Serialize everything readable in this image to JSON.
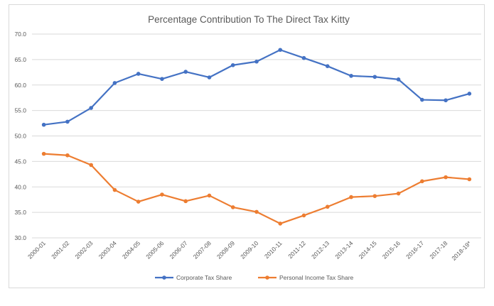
{
  "chart_data": {
    "type": "line",
    "title": "Percentage Contribution To The Direct Tax Kitty",
    "xlabel": "",
    "ylabel": "",
    "ylim": [
      30.0,
      70.0
    ],
    "yticks": [
      "30.0",
      "35.0",
      "40.0",
      "45.0",
      "50.0",
      "55.0",
      "60.0",
      "65.0",
      "70.0"
    ],
    "grid": "horizontal",
    "legend_position": "bottom",
    "categories": [
      "2000-01",
      "2001-02",
      "2002-03",
      "2003-04",
      "2004-05",
      "2005-06",
      "2006-07",
      "2007-08",
      "2008-09",
      "2009-10",
      "2010-11",
      "2011-12",
      "2012-13",
      "2013-14",
      "2014-15",
      "2015-16",
      "2016-17",
      "2017-18",
      "2018-19*"
    ],
    "series": [
      {
        "name": "Corporate Tax Share",
        "color": "#4472C4",
        "values": [
          52.2,
          52.8,
          55.5,
          60.4,
          62.2,
          61.2,
          62.6,
          61.5,
          63.9,
          64.6,
          66.9,
          65.3,
          63.7,
          61.8,
          61.6,
          61.1,
          57.1,
          57.0,
          58.3
        ]
      },
      {
        "name": "Personal Income Tax Share",
        "color": "#ED7D31",
        "values": [
          46.5,
          46.2,
          44.3,
          39.4,
          37.1,
          38.5,
          37.2,
          38.3,
          36.0,
          35.1,
          32.8,
          34.4,
          36.1,
          38.0,
          38.2,
          38.7,
          41.1,
          41.9,
          41.5
        ]
      }
    ]
  }
}
